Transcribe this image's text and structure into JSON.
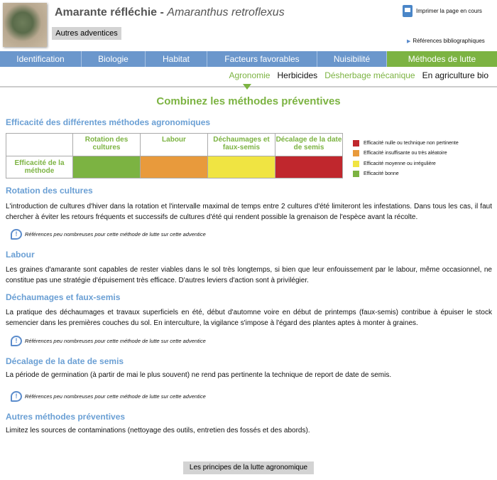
{
  "header": {
    "common_name": "Amarante réfléchie",
    "separator": " - ",
    "latin_name": "Amaranthus retroflexus",
    "other_button": "Autres adventices",
    "print_label": "Imprimer la page en cours",
    "refs_label": "Références bibliographiques"
  },
  "nav": {
    "tabs": [
      {
        "label": "Identification"
      },
      {
        "label": "Biologie"
      },
      {
        "label": "Habitat"
      },
      {
        "label": "Facteurs favorables"
      },
      {
        "label": "Nuisibilité"
      },
      {
        "label": "Méthodes de lutte",
        "active": true
      }
    ]
  },
  "subnav": {
    "items": [
      {
        "label": "Agronomie",
        "active": true
      },
      {
        "label": "Herbicides"
      },
      {
        "label": "Désherbage mécanique"
      },
      {
        "label": "En agriculture bio"
      }
    ]
  },
  "main": {
    "title": "Combinez les méthodes préventives",
    "table_title": "Efficacité des différentes méthodes agronomiques",
    "table": {
      "columns": [
        "Rotation des cultures",
        "Labour",
        "Déchaumages et faux-semis",
        "Décalage de la date de semis"
      ],
      "row_label": "Efficacité de la méthode",
      "ratings": [
        "#7cb342",
        "#e89a3c",
        "#f0e442",
        "#c0272d"
      ]
    },
    "legend": [
      {
        "color": "#c0272d",
        "label": "Efficacité nulle ou technique non pertinente"
      },
      {
        "color": "#e89a3c",
        "label": "Efficacité insuffisante ou très aléatoire"
      },
      {
        "color": "#f0e442",
        "label": "Efficacité moyenne ou irrégulière"
      },
      {
        "color": "#7cb342",
        "label": "Efficacité bonne"
      }
    ],
    "note": "Références peu nombreuses pour cette méthode de lutte sur cette adventice",
    "sections": [
      {
        "title": "Rotation des cultures",
        "text": "L'introduction de cultures d'hiver dans la rotation et l'intervalle maximal de temps entre 2 cultures d'été limiteront les infestations. Dans tous les cas, il faut chercher à éviter les retours fréquents et successifs de cultures d'été qui rendent possible la grenaison de l'espèce avant la récolte."
      },
      {
        "title": "Labour",
        "text": "Les graines d'amarante sont capables de rester viables dans le sol très longtemps, si bien que leur enfouissement par le labour, même occasionnel, ne constitue pas une stratégie d'épuisement très efficace. D'autres leviers d'action sont à privilégier."
      },
      {
        "title": "Déchaumages et faux-semis",
        "text": "La pratique des déchaumages et travaux superficiels en été, début d'automne voire en début de printemps (faux-semis) contribue à épuiser le stock semencier dans les premières couches du sol. En interculture, la vigilance s'impose à l'égard des plantes aptes à monter à graines."
      },
      {
        "title": "Décalage de la date de semis",
        "text": "La période de germination (à partir de mai le plus souvent) ne rend pas pertinente la technique de report de date de semis."
      },
      {
        "title": "Autres méthodes préventives",
        "text": "Limitez les sources de contaminations (nettoyage des outils, entretien des fossés et des abords)."
      }
    ],
    "bottom_button": "Les principes de la lutte agronomique"
  }
}
